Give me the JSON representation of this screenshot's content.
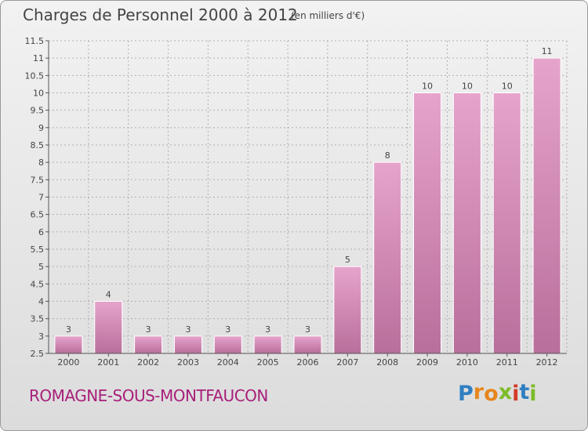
{
  "title": "Charges de Personnel 2000 à 2012",
  "subtitle": "(en milliers d'€)",
  "place": "ROMAGNE-SOUS-MONTFAUCON",
  "logo": {
    "letters": [
      "P",
      "r",
      "o",
      "x",
      "i",
      "t",
      "i"
    ],
    "colors": [
      "#2f7fc1",
      "#e6861d",
      "#e6861d",
      "#7dbb2a",
      "#d23a2a",
      "#2f7fc1",
      "#7dbb2a"
    ]
  },
  "colors": {
    "bar_top": "#e6a4cc",
    "bar_bottom": "#b86f9b",
    "bar_stroke": "#ffffff",
    "axis": "#555555",
    "grid": "#b0b0b0"
  },
  "chart_data": {
    "type": "bar",
    "title": "Charges de Personnel 2000 à 2012",
    "subtitle": "(en milliers d'€)",
    "categories": [
      "2000",
      "2001",
      "2002",
      "2003",
      "2004",
      "2005",
      "2006",
      "2007",
      "2008",
      "2009",
      "2010",
      "2011",
      "2012"
    ],
    "values": [
      3,
      4,
      3,
      3,
      3,
      3,
      3,
      5,
      8,
      10,
      10,
      10,
      11
    ],
    "data_labels": [
      "3",
      "4",
      "3",
      "3",
      "3",
      "3",
      "3",
      "5",
      "8",
      "10",
      "10",
      "10",
      "11"
    ],
    "ylim": [
      2.5,
      11.5
    ],
    "yticks": [
      "2.5",
      "3",
      "3.5",
      "4",
      "4.5",
      "5",
      "5.5",
      "6",
      "6.5",
      "7",
      "7.5",
      "8",
      "8.5",
      "9",
      "9.5",
      "10",
      "10.5",
      "11",
      "11.5"
    ],
    "grid": true
  }
}
